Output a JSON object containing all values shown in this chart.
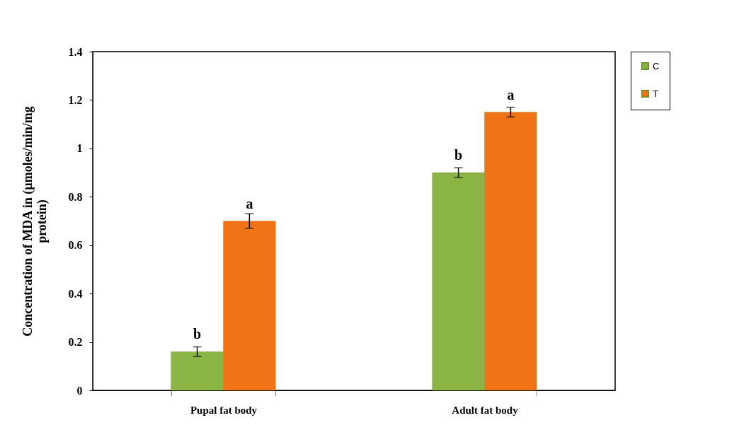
{
  "chart_data": {
    "type": "bar",
    "ylabel": "Concentration of MDA in (µmoles/min/mg protein)",
    "categories": [
      "Pupal fat body",
      "Adult fat body"
    ],
    "series": [
      {
        "name": "C",
        "color": "#8ab443",
        "values": [
          0.16,
          0.9
        ],
        "errors": [
          0.02,
          0.02
        ]
      },
      {
        "name": "T",
        "color": "#f07416",
        "values": [
          0.7,
          1.15
        ],
        "errors": [
          0.03,
          0.02
        ]
      }
    ],
    "ylim": [
      0,
      1.4
    ],
    "yticks": [
      0,
      0.2,
      0.4,
      0.6,
      0.8,
      1,
      1.2,
      1.4
    ],
    "grid": false,
    "legend": "top right",
    "annotations": [
      {
        "text": "b",
        "x": "Pupal fat body",
        "y": 0.16
      },
      {
        "text": "a",
        "x": "Pupal fat body",
        "y": 0.7
      },
      {
        "text": "b",
        "x": "Adult fat body",
        "y": 0.9
      },
      {
        "text": "a",
        "x": "Adult fat body",
        "y": 1.15
      }
    ]
  }
}
